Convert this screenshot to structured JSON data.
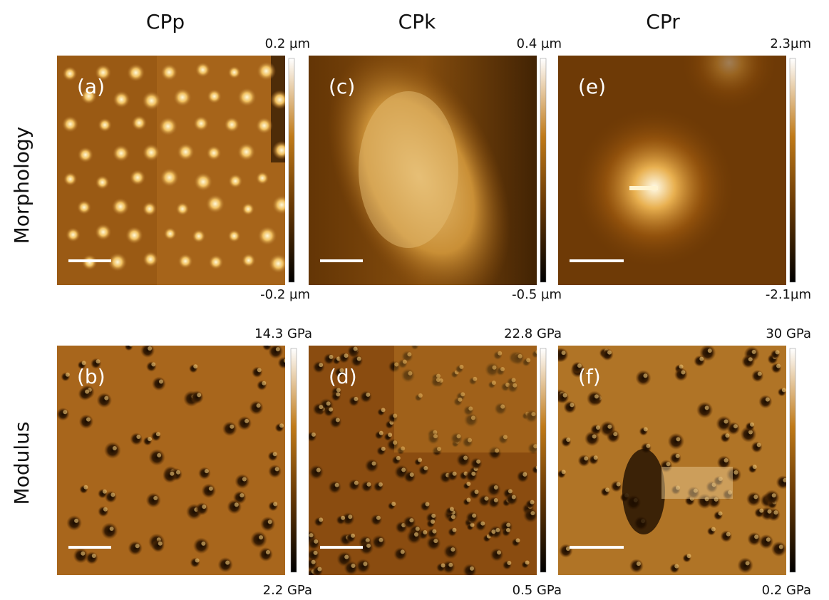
{
  "column_titles": [
    "CPp",
    "CPk",
    "CPr"
  ],
  "row_titles": [
    "Morphology",
    "Modulus"
  ],
  "panels": [
    {
      "label": "(a)",
      "scale_max": "0.2 µm",
      "scale_min": "-0.2 µm"
    },
    {
      "label": "(c)",
      "scale_max": "0.4 µm",
      "scale_min": "-0.5 µm"
    },
    {
      "label": "(e)",
      "scale_max": "2.3µm",
      "scale_min": "-2.1µm"
    },
    {
      "label": "(b)",
      "scale_max": "14.3 GPa",
      "scale_min": "2.2 GPa"
    },
    {
      "label": "(d)",
      "scale_max": "22.8 GPa",
      "scale_min": "0.5 GPa"
    },
    {
      "label": "(f)",
      "scale_max": "30 GPa",
      "scale_min": "0.2 GPa"
    }
  ]
}
